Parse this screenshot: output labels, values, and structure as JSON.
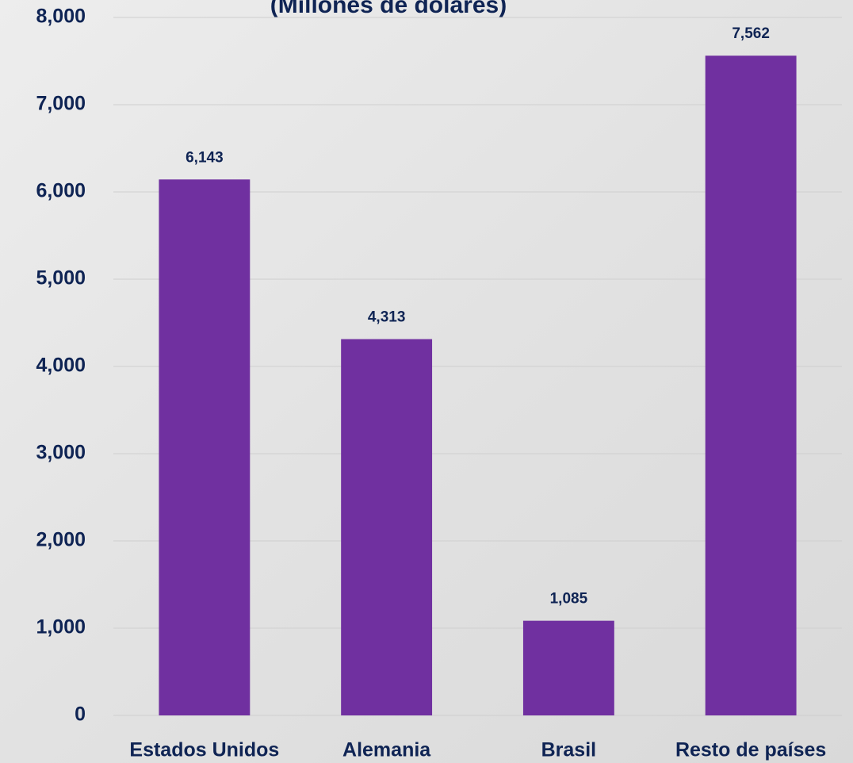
{
  "chart_data": {
    "type": "bar",
    "title": "(Millones de dólares)",
    "categories": [
      "Estados Unidos",
      "Alemania",
      "Brasil",
      "Resto de países"
    ],
    "values": [
      6143,
      4313,
      1085,
      7562
    ],
    "value_labels": [
      "6,143",
      "4,313",
      "1,085",
      "7,562"
    ],
    "color": "#7030a0",
    "ylim": [
      0,
      8000
    ],
    "yticks": [
      0,
      {
        "value": 1000,
        "label": "1,000"
      },
      {
        "value": 2000,
        "label": "2,000"
      },
      {
        "value": 3000,
        "label": "3,000"
      },
      {
        "value": 4000,
        "label": "4,000"
      },
      {
        "value": 5000,
        "label": "5,000"
      },
      {
        "value": 6000,
        "label": "6,000"
      },
      {
        "value": 7000,
        "label": "7,000"
      },
      {
        "value": 8000,
        "label": "8,000"
      }
    ],
    "grid": true
  }
}
